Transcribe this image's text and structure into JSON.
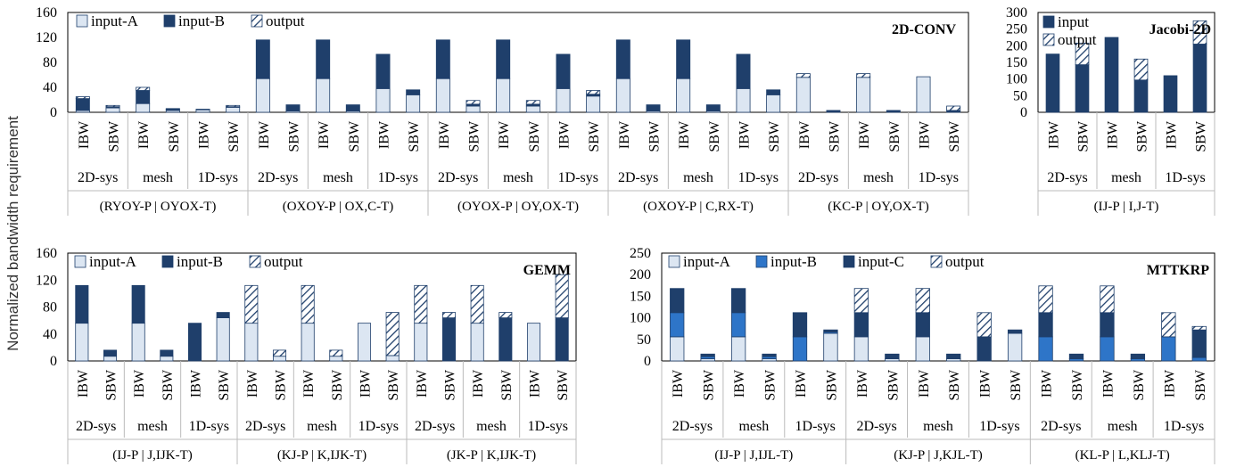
{
  "figure": {
    "y_axis_title": "Normalized bandwidth requirement"
  },
  "colors": {
    "light": "#dce6f2",
    "mid": "#2e75c8",
    "dark": "#1f3f6b",
    "stroke": "#1f3f6b"
  },
  "chart_data": [
    {
      "id": "conv",
      "type": "bar",
      "stacked": true,
      "title": "2D-CONV",
      "ylim": [
        0,
        160
      ],
      "yticks": [
        0,
        40,
        80,
        120,
        160
      ],
      "legend": [
        {
          "name": "input-A",
          "pattern": "light"
        },
        {
          "name": "input-B",
          "pattern": "dark"
        },
        {
          "name": "output",
          "pattern": "hatch"
        }
      ],
      "bar_labels": [
        "IBW",
        "SBW"
      ],
      "arch_labels": [
        "2D-sys",
        "mesh",
        "1D-sys"
      ],
      "groups": [
        {
          "label": "(RYOY-P | OYOX-T)",
          "bars": [
            {
              "input-A": 3,
              "input-B": 19,
              "output": 3
            },
            {
              "input-A": 7,
              "input-B": 2,
              "output": 2
            },
            {
              "input-A": 14,
              "input-B": 21,
              "output": 5
            },
            {
              "input-A": 3,
              "input-B": 2,
              "output": 1
            },
            {
              "input-A": 4,
              "input-B": 0,
              "output": 1
            },
            {
              "input-A": 8,
              "input-B": 1,
              "output": 2
            }
          ]
        },
        {
          "label": "(OXOY-P | OX,C-T)",
          "bars": [
            {
              "input-A": 54,
              "input-B": 62,
              "output": 0
            },
            {
              "input-A": 2,
              "input-B": 10,
              "output": 0
            },
            {
              "input-A": 54,
              "input-B": 62,
              "output": 0
            },
            {
              "input-A": 2,
              "input-B": 10,
              "output": 0
            },
            {
              "input-A": 38,
              "input-B": 55,
              "output": 0
            },
            {
              "input-A": 28,
              "input-B": 8,
              "output": 0
            }
          ]
        },
        {
          "label": "(OYOX-P | OY,OX-T)",
          "bars": [
            {
              "input-A": 54,
              "input-B": 62,
              "output": 0
            },
            {
              "input-A": 10,
              "input-B": 3,
              "output": 6
            },
            {
              "input-A": 54,
              "input-B": 62,
              "output": 0
            },
            {
              "input-A": 10,
              "input-B": 3,
              "output": 6
            },
            {
              "input-A": 38,
              "input-B": 55,
              "output": 0
            },
            {
              "input-A": 26,
              "input-B": 3,
              "output": 6
            }
          ]
        },
        {
          "label": "(OXOY-P | C,RX-T)",
          "bars": [
            {
              "input-A": 54,
              "input-B": 62,
              "output": 0
            },
            {
              "input-A": 2,
              "input-B": 10,
              "output": 0
            },
            {
              "input-A": 54,
              "input-B": 62,
              "output": 0
            },
            {
              "input-A": 2,
              "input-B": 10,
              "output": 0
            },
            {
              "input-A": 38,
              "input-B": 55,
              "output": 0
            },
            {
              "input-A": 28,
              "input-B": 8,
              "output": 0
            }
          ]
        },
        {
          "label": "(KC-P | OY,OX-T)",
          "bars": [
            {
              "input-A": 56,
              "input-B": 0,
              "output": 6
            },
            {
              "input-A": 0,
              "input-B": 3,
              "output": 0
            },
            {
              "input-A": 56,
              "input-B": 0,
              "output": 6
            },
            {
              "input-A": 0,
              "input-B": 3,
              "output": 0
            },
            {
              "input-A": 57,
              "input-B": 0,
              "output": 0
            },
            {
              "input-A": 0,
              "input-B": 3,
              "output": 7
            }
          ]
        }
      ]
    },
    {
      "id": "jacobi",
      "type": "bar",
      "stacked": true,
      "title": "Jacobi-2D",
      "ylim": [
        0,
        300
      ],
      "yticks": [
        0,
        50,
        100,
        150,
        200,
        250,
        300
      ],
      "legend": [
        {
          "name": "input",
          "pattern": "dark"
        },
        {
          "name": "output",
          "pattern": "hatch"
        }
      ],
      "bar_labels": [
        "IBW",
        "SBW"
      ],
      "arch_labels": [
        "2D-sys",
        "mesh",
        "1D-sys"
      ],
      "groups": [
        {
          "label": "(IJ-P | I,J-T)",
          "bars": [
            {
              "input": 175,
              "output": 0
            },
            {
              "input": 143,
              "output": 65
            },
            {
              "input": 225,
              "output": 0
            },
            {
              "input": 97,
              "output": 63
            },
            {
              "input": 110,
              "output": 0
            },
            {
              "input": 205,
              "output": 70
            }
          ]
        }
      ]
    },
    {
      "id": "gemm",
      "type": "bar",
      "stacked": true,
      "title": "GEMM",
      "ylim": [
        0,
        160
      ],
      "yticks": [
        0,
        40,
        80,
        120,
        160
      ],
      "legend": [
        {
          "name": "input-A",
          "pattern": "light"
        },
        {
          "name": "input-B",
          "pattern": "dark"
        },
        {
          "name": "output",
          "pattern": "hatch"
        }
      ],
      "bar_labels": [
        "IBW",
        "SBW"
      ],
      "arch_labels": [
        "2D-sys",
        "mesh",
        "1D-sys"
      ],
      "groups": [
        {
          "label": "(IJ-P | J,IJK-T)",
          "bars": [
            {
              "input-A": 56,
              "input-B": 56,
              "output": 0
            },
            {
              "input-A": 7,
              "input-B": 9,
              "output": 0
            },
            {
              "input-A": 56,
              "input-B": 56,
              "output": 0
            },
            {
              "input-A": 7,
              "input-B": 9,
              "output": 0
            },
            {
              "input-A": 0,
              "input-B": 56,
              "output": 0
            },
            {
              "input-A": 64,
              "input-B": 8,
              "output": 0
            }
          ]
        },
        {
          "label": "(KJ-P | K,IJK-T)",
          "bars": [
            {
              "input-A": 56,
              "input-B": 0,
              "output": 56
            },
            {
              "input-A": 7,
              "input-B": 0,
              "output": 9
            },
            {
              "input-A": 56,
              "input-B": 0,
              "output": 56
            },
            {
              "input-A": 7,
              "input-B": 0,
              "output": 9
            },
            {
              "input-A": 56,
              "input-B": 0,
              "output": 0
            },
            {
              "input-A": 8,
              "input-B": 0,
              "output": 64
            }
          ]
        },
        {
          "label": "(JK-P | K,IJK-T)",
          "bars": [
            {
              "input-A": 56,
              "input-B": 0,
              "output": 56
            },
            {
              "input-A": 0,
              "input-B": 64,
              "output": 8
            },
            {
              "input-A": 56,
              "input-B": 0,
              "output": 56
            },
            {
              "input-A": 0,
              "input-B": 64,
              "output": 8
            },
            {
              "input-A": 56,
              "input-B": 0,
              "output": 0
            },
            {
              "input-A": 0,
              "input-B": 64,
              "output": 64
            }
          ]
        }
      ]
    },
    {
      "id": "mttkrp",
      "type": "bar",
      "stacked": true,
      "title": "MTTKRP",
      "ylim": [
        0,
        250
      ],
      "yticks": [
        0,
        50,
        100,
        150,
        200,
        250
      ],
      "legend": [
        {
          "name": "input-A",
          "pattern": "light"
        },
        {
          "name": "input-B",
          "pattern": "mid"
        },
        {
          "name": "input-C",
          "pattern": "dark"
        },
        {
          "name": "output",
          "pattern": "hatch"
        }
      ],
      "bar_labels": [
        "IBW",
        "SBW"
      ],
      "arch_labels": [
        "2D-sys",
        "mesh",
        "1D-sys"
      ],
      "groups": [
        {
          "label": "(IJ-P | J,IJL-T)",
          "bars": [
            {
              "input-A": 56,
              "input-B": 56,
              "input-C": 56,
              "output": 0
            },
            {
              "input-A": 5,
              "input-B": 5,
              "input-C": 6,
              "output": 0
            },
            {
              "input-A": 56,
              "input-B": 56,
              "input-C": 56,
              "output": 0
            },
            {
              "input-A": 5,
              "input-B": 5,
              "input-C": 6,
              "output": 0
            },
            {
              "input-A": 0,
              "input-B": 56,
              "input-C": 56,
              "output": 0
            },
            {
              "input-A": 64,
              "input-B": 3,
              "input-C": 5,
              "output": 0
            }
          ]
        },
        {
          "label": "(KJ-P | J,KJL-T)",
          "bars": [
            {
              "input-A": 56,
              "input-B": 0,
              "input-C": 56,
              "output": 56
            },
            {
              "input-A": 5,
              "input-B": 0,
              "input-C": 11,
              "output": 0
            },
            {
              "input-A": 56,
              "input-B": 0,
              "input-C": 56,
              "output": 56
            },
            {
              "input-A": 5,
              "input-B": 0,
              "input-C": 11,
              "output": 0
            },
            {
              "input-A": 0,
              "input-B": 0,
              "input-C": 56,
              "output": 56
            },
            {
              "input-A": 64,
              "input-B": 0,
              "input-C": 8,
              "output": 0
            }
          ]
        },
        {
          "label": "(KL-P | L,KLJ-T)",
          "bars": [
            {
              "input-A": 0,
              "input-B": 56,
              "input-C": 56,
              "output": 62
            },
            {
              "input-A": 0,
              "input-B": 5,
              "input-C": 11,
              "output": 0
            },
            {
              "input-A": 0,
              "input-B": 56,
              "input-C": 56,
              "output": 62
            },
            {
              "input-A": 0,
              "input-B": 5,
              "input-C": 11,
              "output": 0
            },
            {
              "input-A": 0,
              "input-B": 56,
              "input-C": 0,
              "output": 56
            },
            {
              "input-A": 0,
              "input-B": 8,
              "input-C": 64,
              "output": 8
            }
          ]
        }
      ]
    }
  ]
}
